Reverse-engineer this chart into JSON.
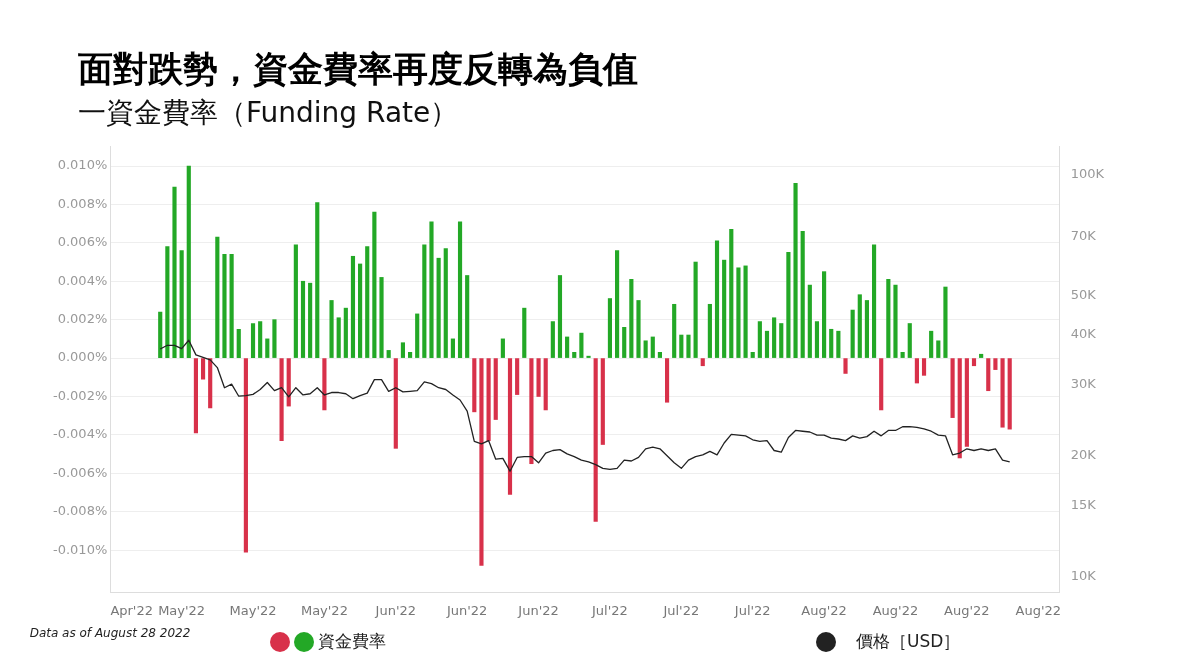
{
  "chart_data": {
    "type": "bar",
    "title": "面對跌勢，資金費率再度反轉為負值",
    "subtitle": "一資金費率（Funding Rate）",
    "annotations": [
      "Data as of August 28 2022"
    ],
    "x": [
      "2022-04-30",
      "2022-05-01",
      "2022-05-02",
      "2022-05-03",
      "2022-05-04",
      "2022-05-05",
      "2022-05-06",
      "2022-05-07",
      "2022-05-08",
      "2022-05-09",
      "2022-05-10",
      "2022-05-11",
      "2022-05-12",
      "2022-05-13",
      "2022-05-14",
      "2022-05-15",
      "2022-05-16",
      "2022-05-17",
      "2022-05-18",
      "2022-05-19",
      "2022-05-20",
      "2022-05-21",
      "2022-05-22",
      "2022-05-23",
      "2022-05-24",
      "2022-05-25",
      "2022-05-26",
      "2022-05-27",
      "2022-05-28",
      "2022-05-29",
      "2022-05-30",
      "2022-05-31",
      "2022-06-01",
      "2022-06-02",
      "2022-06-03",
      "2022-06-04",
      "2022-06-05",
      "2022-06-06",
      "2022-06-07",
      "2022-06-08",
      "2022-06-09",
      "2022-06-10",
      "2022-06-11",
      "2022-06-12",
      "2022-06-13",
      "2022-06-14",
      "2022-06-15",
      "2022-06-16",
      "2022-06-17",
      "2022-06-18",
      "2022-06-19",
      "2022-06-20",
      "2022-06-21",
      "2022-06-22",
      "2022-06-23",
      "2022-06-24",
      "2022-06-25",
      "2022-06-26",
      "2022-06-27",
      "2022-06-28",
      "2022-06-29",
      "2022-06-30",
      "2022-07-01",
      "2022-07-02",
      "2022-07-03",
      "2022-07-04",
      "2022-07-05",
      "2022-07-06",
      "2022-07-07",
      "2022-07-08",
      "2022-07-09",
      "2022-07-10",
      "2022-07-11",
      "2022-07-12",
      "2022-07-13",
      "2022-07-14",
      "2022-07-15",
      "2022-07-16",
      "2022-07-17",
      "2022-07-18",
      "2022-07-19",
      "2022-07-20",
      "2022-07-21",
      "2022-07-22",
      "2022-07-23",
      "2022-07-24",
      "2022-07-25",
      "2022-07-26",
      "2022-07-27",
      "2022-07-28",
      "2022-07-29",
      "2022-07-30",
      "2022-07-31",
      "2022-08-01",
      "2022-08-02",
      "2022-08-03",
      "2022-08-04",
      "2022-08-05",
      "2022-08-06",
      "2022-08-07",
      "2022-08-08",
      "2022-08-09",
      "2022-08-10",
      "2022-08-11",
      "2022-08-12",
      "2022-08-13",
      "2022-08-14",
      "2022-08-15",
      "2022-08-16",
      "2022-08-17",
      "2022-08-18",
      "2022-08-19",
      "2022-08-20",
      "2022-08-21",
      "2022-08-22",
      "2022-08-23",
      "2022-08-24",
      "2022-08-25",
      "2022-08-26",
      "2022-08-27"
    ],
    "series": [
      {
        "name": "資金費率",
        "values": [
          0.0024,
          0.0058,
          0.0089,
          0.0056,
          0.01,
          -0.0039,
          -0.0011,
          -0.0026,
          0.0063,
          0.0054,
          0.0054,
          0.0015,
          -0.0101,
          0.0018,
          0.0019,
          0.001,
          0.002,
          -0.0043,
          -0.0025,
          0.0059,
          0.004,
          0.0039,
          0.0081,
          -0.0027,
          0.003,
          0.0021,
          0.0026,
          0.0053,
          0.0049,
          0.0058,
          0.0076,
          0.0042,
          0.0004,
          -0.0047,
          0.0008,
          0.0003,
          0.0023,
          0.0059,
          0.0071,
          0.0052,
          0.0057,
          0.001,
          0.0071,
          0.0043,
          -0.0028,
          -0.0108,
          -0.0043,
          -0.0032,
          0.001,
          -0.0071,
          -0.0019,
          0.0026,
          -0.0055,
          -0.002,
          -0.0027,
          0.0019,
          0.0043,
          0.0011,
          0.0003,
          0.0013,
          0.0001,
          -0.0085,
          -0.0045,
          0.0031,
          0.0056,
          0.0016,
          0.0041,
          0.003,
          0.0009,
          0.0011,
          0.0003,
          -0.0023,
          0.0028,
          0.0012,
          0.0012,
          0.005,
          -0.0004,
          0.0028,
          0.0061,
          0.0051,
          0.0067,
          0.0047,
          0.0048,
          0.0003,
          0.0019,
          0.0014,
          0.0021,
          0.0018,
          0.0055,
          0.0091,
          0.0066,
          0.0038,
          0.0019,
          0.0045,
          0.0015,
          0.0014,
          -0.0008,
          0.0025,
          0.0033,
          0.003,
          0.0059,
          -0.0027,
          0.0041,
          0.0038,
          0.0003,
          0.0018,
          -0.0013,
          -0.0009,
          0.0014,
          0.0009,
          0.0037,
          -0.0031,
          -0.0052,
          -0.0046,
          -0.0004,
          0.0002,
          -0.0017,
          -0.0006,
          -0.0036,
          -0.0037
        ],
        "colors": [
          "#23a826",
          "#23a826",
          "#23a826",
          "#23a826",
          "#23a826",
          "#d8314a",
          "#d8314a",
          "#d8314a",
          "#23a826",
          "#23a826",
          "#23a826",
          "#23a826",
          "#d8314a",
          "#23a826",
          "#23a826",
          "#23a826",
          "#23a826",
          "#d8314a",
          "#d8314a",
          "#23a826",
          "#23a826",
          "#23a826",
          "#23a826",
          "#d8314a",
          "#23a826",
          "#23a826",
          "#23a826",
          "#23a826",
          "#23a826",
          "#23a826",
          "#23a826",
          "#23a826",
          "#23a826",
          "#d8314a",
          "#23a826",
          "#23a826",
          "#23a826",
          "#23a826",
          "#23a826",
          "#23a826",
          "#23a826",
          "#23a826",
          "#23a826",
          "#23a826",
          "#d8314a",
          "#d8314a",
          "#d8314a",
          "#d8314a",
          "#23a826",
          "#d8314a",
          "#d8314a",
          "#23a826",
          "#d8314a",
          "#d8314a",
          "#d8314a",
          "#23a826",
          "#23a826",
          "#23a826",
          "#23a826",
          "#23a826",
          "#23a826",
          "#d8314a",
          "#d8314a",
          "#23a826",
          "#23a826",
          "#23a826",
          "#23a826",
          "#23a826",
          "#23a826",
          "#23a826",
          "#23a826",
          "#d8314a",
          "#23a826",
          "#23a826",
          "#23a826",
          "#23a826",
          "#d8314a",
          "#23a826",
          "#23a826",
          "#23a826",
          "#23a826",
          "#23a826",
          "#23a826",
          "#23a826",
          "#23a826",
          "#23a826",
          "#23a826",
          "#23a826",
          "#23a826",
          "#23a826",
          "#23a826",
          "#23a826",
          "#23a826",
          "#23a826",
          "#23a826",
          "#23a826",
          "#d8314a",
          "#23a826",
          "#23a826",
          "#23a826",
          "#23a826",
          "#d8314a",
          "#23a826",
          "#23a826",
          "#23a826",
          "#23a826",
          "#d8314a",
          "#d8314a",
          "#23a826",
          "#23a826",
          "#23a826",
          "#d8314a",
          "#d8314a",
          "#d8314a",
          "#d8314a",
          "#23a826",
          "#d8314a",
          "#d8314a",
          "#d8314a",
          "#d8314a"
        ]
      },
      {
        "name": "價格［USD］",
        "type": "line",
        "axis": "y2",
        "color": "#222222",
        "values": [
          36800,
          37600,
          37600,
          36900,
          38700,
          35600,
          35100,
          34600,
          33100,
          29500,
          30100,
          28100,
          28200,
          28400,
          29200,
          30400,
          29000,
          29500,
          28000,
          29500,
          28300,
          28500,
          29500,
          28300,
          28700,
          28700,
          28500,
          27700,
          28200,
          28600,
          30900,
          30900,
          28900,
          29500,
          28800,
          28900,
          29000,
          30500,
          30200,
          29500,
          29200,
          28300,
          27500,
          25800,
          21700,
          21400,
          21800,
          19600,
          19700,
          18300,
          19800,
          19900,
          19900,
          19200,
          20300,
          20600,
          20700,
          20200,
          19900,
          19500,
          19300,
          19000,
          18600,
          18500,
          18600,
          19500,
          19400,
          19800,
          20800,
          21000,
          20800,
          20000,
          19200,
          18600,
          19500,
          19900,
          20100,
          20500,
          20100,
          21500,
          22600,
          22500,
          22400,
          21900,
          21700,
          21800,
          20600,
          20400,
          22200,
          23100,
          23000,
          22900,
          22500,
          22500,
          22100,
          22000,
          21800,
          22400,
          22100,
          22300,
          23000,
          22400,
          23100,
          23100,
          23600,
          23600,
          23500,
          23300,
          23000,
          22500,
          22400,
          20100,
          20300,
          20800,
          20600,
          20800,
          20600,
          20800,
          19500,
          19300
        ]
      }
    ],
    "xlim": [
      "2022-04-23",
      "2022-09-03"
    ],
    "xticks": [
      {
        "value": "2022-04-26",
        "label": "Apr'22"
      },
      {
        "value": "2022-05-03",
        "label": "May'22"
      },
      {
        "value": "2022-05-13",
        "label": "May'22"
      },
      {
        "value": "2022-05-23",
        "label": "May'22"
      },
      {
        "value": "2022-06-02",
        "label": "Jun'22"
      },
      {
        "value": "2022-06-12",
        "label": "Jun'22"
      },
      {
        "value": "2022-06-22",
        "label": "Jun'22"
      },
      {
        "value": "2022-07-02",
        "label": "Jul'22"
      },
      {
        "value": "2022-07-12",
        "label": "Jul'22"
      },
      {
        "value": "2022-07-22",
        "label": "Jul'22"
      },
      {
        "value": "2022-08-01",
        "label": "Aug'22"
      },
      {
        "value": "2022-08-11",
        "label": "Aug'22"
      },
      {
        "value": "2022-08-21",
        "label": "Aug'22"
      },
      {
        "value": "2022-08-31",
        "label": "Aug'22"
      }
    ],
    "ylim": [
      -0.0122,
      0.011
    ],
    "yticks": [
      {
        "value": -0.01,
        "label": "-0.010%"
      },
      {
        "value": -0.008,
        "label": "-0.008%"
      },
      {
        "value": -0.006,
        "label": "-0.006%"
      },
      {
        "value": -0.004,
        "label": "-0.004%"
      },
      {
        "value": -0.002,
        "label": "-0.002%"
      },
      {
        "value": 0,
        "label": "0.000%"
      },
      {
        "value": 0.002,
        "label": "0.002%"
      },
      {
        "value": 0.004,
        "label": "0.004%"
      },
      {
        "value": 0.006,
        "label": "0.006%"
      },
      {
        "value": 0.008,
        "label": "0.008%"
      },
      {
        "value": 0.01,
        "label": "0.010%"
      }
    ],
    "y2lim": [
      9150,
      117000
    ],
    "y2ticks": [
      {
        "value": 10000,
        "label": "10K"
      },
      {
        "value": 15000,
        "label": "15K"
      },
      {
        "value": 20000,
        "label": "20K"
      },
      {
        "value": 30000,
        "label": "30K"
      },
      {
        "value": 40000,
        "label": "40K"
      },
      {
        "value": 50000,
        "label": "50K"
      },
      {
        "value": 70000,
        "label": "70K"
      },
      {
        "value": 100000,
        "label": "100K"
      }
    ],
    "log": "y2",
    "grid": "y",
    "legend": "bottom",
    "marker": "none"
  }
}
